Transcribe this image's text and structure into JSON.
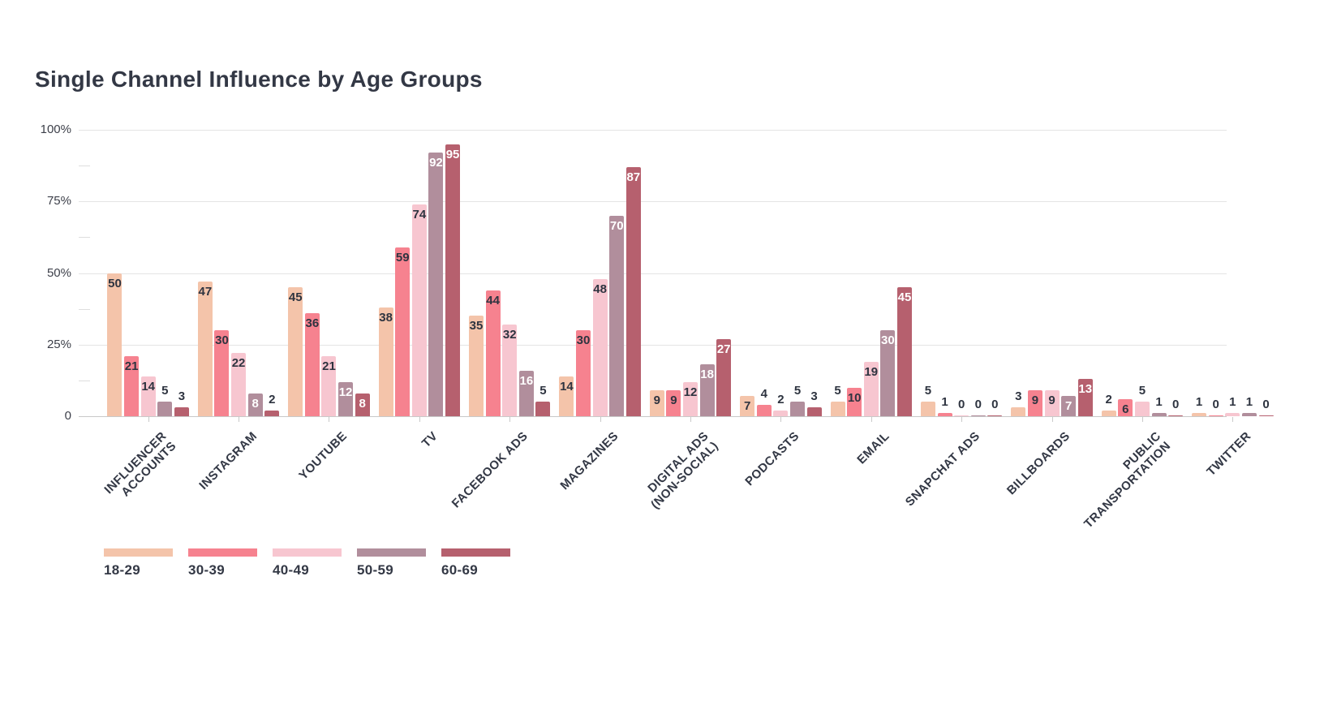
{
  "header": {
    "title": "Single Channel Influence by Age Groups"
  },
  "y_axis": {
    "tick_labels": [
      "100%",
      "75%",
      "50%",
      "25%",
      "0"
    ]
  },
  "legend": {
    "items": [
      {
        "label": "18-29",
        "color": "#f4c4aa"
      },
      {
        "label": "30-39",
        "color": "#f6828f"
      },
      {
        "label": "40-49",
        "color": "#f7c6d0"
      },
      {
        "label": "50-59",
        "color": "#b18e9c"
      },
      {
        "label": "60-69",
        "color": "#b6606e"
      }
    ]
  },
  "chart_data": {
    "type": "bar",
    "title": "Single Channel Influence by Age Groups",
    "xlabel": "",
    "ylabel": "",
    "ylim": [
      0,
      100
    ],
    "grid": true,
    "legend_position": "bottom-left",
    "value_labels": "on",
    "y_ticks": [
      {
        "value": 100,
        "label": "100%"
      },
      {
        "value": 75,
        "label": "75%"
      },
      {
        "value": 50,
        "label": "50%"
      },
      {
        "value": 25,
        "label": "25%"
      },
      {
        "value": 0,
        "label": "0"
      }
    ],
    "categories": [
      "INFLUENCER\nACCOUNTS",
      "INSTAGRAM",
      "YOUTUBE",
      "TV",
      "FACEBOOK ADS",
      "MAGAZINES",
      "DIGITAL ADS\n(NON-SOCIAL)",
      "PODCASTS",
      "EMAIL",
      "SNAPCHAT ADS",
      "BILLBOARDS",
      "PUBLIC\nTRANSPORTATION",
      "TWITTER"
    ],
    "series": [
      {
        "name": "18-29",
        "color": "#f4c4aa",
        "label_color": "#2e3440",
        "values": [
          50,
          47,
          45,
          38,
          35,
          14,
          9,
          7,
          5,
          5,
          3,
          2,
          1
        ]
      },
      {
        "name": "30-39",
        "color": "#f6828f",
        "label_color": "#2e3440",
        "values": [
          21,
          30,
          36,
          59,
          44,
          30,
          9,
          4,
          10,
          1,
          9,
          6,
          0
        ]
      },
      {
        "name": "40-49",
        "color": "#f7c6d0",
        "label_color": "#2e3440",
        "values": [
          14,
          22,
          21,
          74,
          32,
          48,
          12,
          2,
          19,
          0,
          9,
          5,
          1
        ]
      },
      {
        "name": "50-59",
        "color": "#b18e9c",
        "label_color": "#ffffff",
        "values": [
          5,
          8,
          12,
          92,
          16,
          70,
          18,
          5,
          30,
          0,
          7,
          1,
          1
        ]
      },
      {
        "name": "60-69",
        "color": "#b6606e",
        "label_color": "#ffffff",
        "values": [
          3,
          2,
          8,
          95,
          5,
          87,
          27,
          3,
          45,
          0,
          13,
          0,
          0
        ]
      }
    ]
  }
}
